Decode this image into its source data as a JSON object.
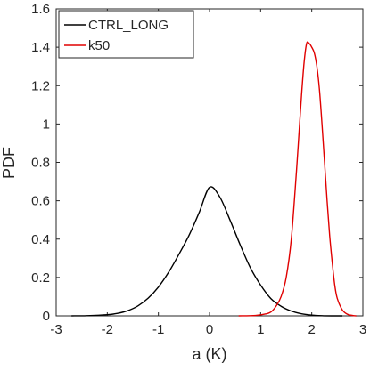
{
  "chart_data": {
    "type": "line",
    "title": "",
    "xlabel": "a (K)",
    "ylabel": "PDF",
    "xlim": [
      -3,
      3
    ],
    "ylim": [
      0,
      1.6
    ],
    "xticks": [
      -3,
      -2,
      -1,
      0,
      1,
      2,
      3
    ],
    "yticks": [
      0,
      0.2,
      0.4,
      0.6,
      0.8,
      1,
      1.2,
      1.4,
      1.6
    ],
    "xtick_labels": [
      "-3",
      "-2",
      "-1",
      "0",
      "1",
      "2",
      "3"
    ],
    "ytick_labels": [
      "0",
      "0.2",
      "0.4",
      "0.6",
      "0.8",
      "1",
      "1.2",
      "1.4",
      "1.6"
    ],
    "grid": false,
    "legend_position": "top-left",
    "series": [
      {
        "name": "CTRL_LONG",
        "color": "#000000",
        "x": [
          -2.7,
          -2.4,
          -2.0,
          -1.8,
          -1.6,
          -1.4,
          -1.2,
          -1.0,
          -0.8,
          -0.6,
          -0.4,
          -0.2,
          0.0,
          0.2,
          0.4,
          0.6,
          0.8,
          1.0,
          1.2,
          1.4,
          1.6,
          1.8,
          2.0,
          2.2,
          2.4,
          2.6
        ],
        "y": [
          0.0,
          0.001,
          0.006,
          0.013,
          0.027,
          0.052,
          0.092,
          0.15,
          0.227,
          0.32,
          0.42,
          0.54,
          0.67,
          0.62,
          0.5,
          0.37,
          0.25,
          0.16,
          0.09,
          0.05,
          0.025,
          0.011,
          0.004,
          0.001,
          0.0,
          0.0
        ]
      },
      {
        "name": "k50",
        "color": "#e00000",
        "x": [
          0.57,
          0.9,
          1.1,
          1.2,
          1.3,
          1.4,
          1.5,
          1.6,
          1.7,
          1.75,
          1.8,
          1.85,
          1.9,
          1.95,
          2.0,
          2.05,
          2.1,
          2.15,
          2.2,
          2.25,
          2.3,
          2.35,
          2.4,
          2.45,
          2.5,
          2.6,
          2.7,
          2.8,
          2.87
        ],
        "y": [
          0.0,
          0.002,
          0.01,
          0.02,
          0.05,
          0.1,
          0.2,
          0.4,
          0.75,
          0.95,
          1.15,
          1.32,
          1.42,
          1.42,
          1.4,
          1.37,
          1.3,
          1.18,
          1.0,
          0.8,
          0.6,
          0.42,
          0.28,
          0.16,
          0.09,
          0.03,
          0.008,
          0.002,
          0.0
        ]
      }
    ]
  }
}
